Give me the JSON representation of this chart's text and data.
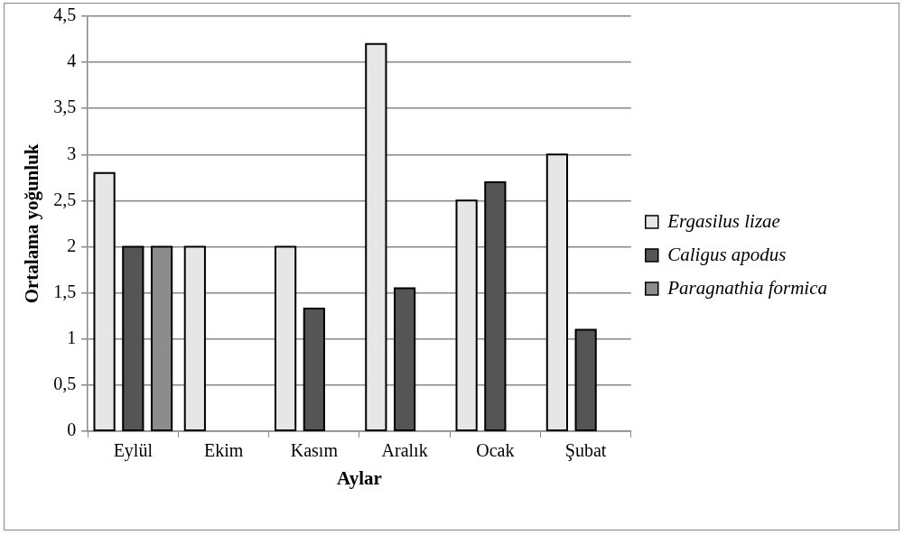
{
  "chart_data": {
    "type": "bar",
    "xlabel": "Aylar",
    "ylabel": "Ortalama yoğunluk",
    "categories": [
      "Eylül",
      "Ekim",
      "Kasım",
      "Aralık",
      "Ocak",
      "Şubat"
    ],
    "series": [
      {
        "name": "Ergasilus lizae",
        "color": "#e6e6e6",
        "values": [
          2.8,
          2,
          2,
          4.2,
          2.5,
          3
        ]
      },
      {
        "name": "Caligus apodus",
        "color": "#555555",
        "values": [
          2,
          null,
          1.33,
          1.55,
          2.7,
          1.1
        ]
      },
      {
        "name": "Paragnathia formica",
        "color": "#8c8c8c",
        "values": [
          2,
          null,
          null,
          null,
          null,
          null
        ]
      }
    ],
    "ylim": [
      0,
      4.5
    ],
    "yticks": [
      {
        "value": 0,
        "label": "0"
      },
      {
        "value": 0.5,
        "label": "0,5"
      },
      {
        "value": 1,
        "label": "1"
      },
      {
        "value": 1.5,
        "label": "1,5"
      },
      {
        "value": 2,
        "label": "2"
      },
      {
        "value": 2.5,
        "label": "2,5"
      },
      {
        "value": 3,
        "label": "3"
      },
      {
        "value": 3.5,
        "label": "3,5"
      },
      {
        "value": 4,
        "label": "4"
      },
      {
        "value": 4.5,
        "label": "4,5"
      }
    ],
    "grid": "y",
    "legend": "right"
  }
}
